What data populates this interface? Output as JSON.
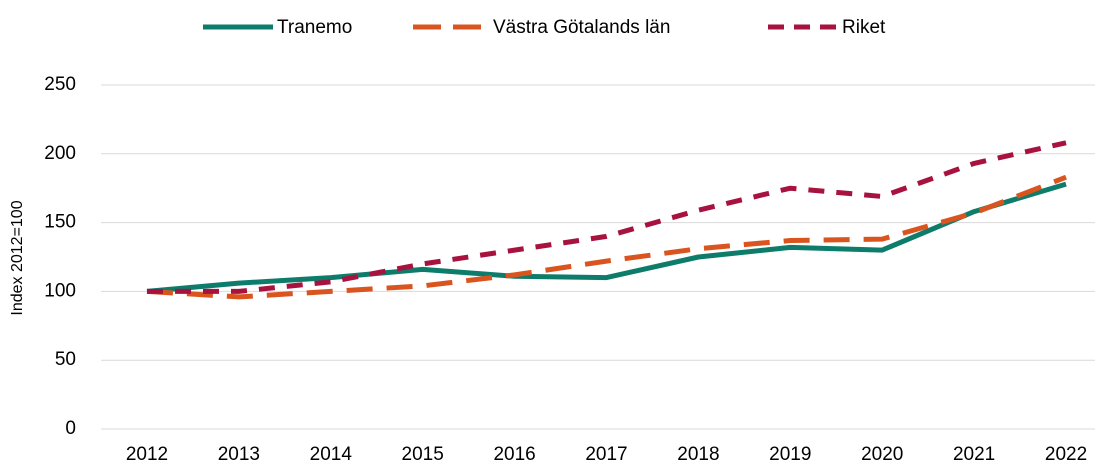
{
  "chart_data": {
    "type": "line",
    "y_label": "Index 2012=100",
    "categories": [
      "2012",
      "2013",
      "2014",
      "2015",
      "2016",
      "2017",
      "2018",
      "2019",
      "2020",
      "2021",
      "2022"
    ],
    "series": [
      {
        "name": "Tranemo",
        "color": "#0e7c6b",
        "dash": "solid",
        "values": [
          100,
          106,
          110,
          116,
          111,
          110,
          125,
          132,
          130,
          158,
          178
        ]
      },
      {
        "name": "Västra Götalands län",
        "color": "#d9541e",
        "dash": "long",
        "values": [
          100,
          96,
          100,
          104,
          112,
          122,
          131,
          137,
          138,
          157,
          183
        ]
      },
      {
        "name": "Riket",
        "color": "#a8123e",
        "dash": "short",
        "values": [
          100,
          100,
          107,
          120,
          130,
          140,
          159,
          175,
          169,
          193,
          208
        ]
      }
    ],
    "ylim": [
      0,
      250
    ],
    "yticks": [
      0,
      50,
      100,
      150,
      200,
      250
    ],
    "grid": true,
    "legend": "top"
  }
}
